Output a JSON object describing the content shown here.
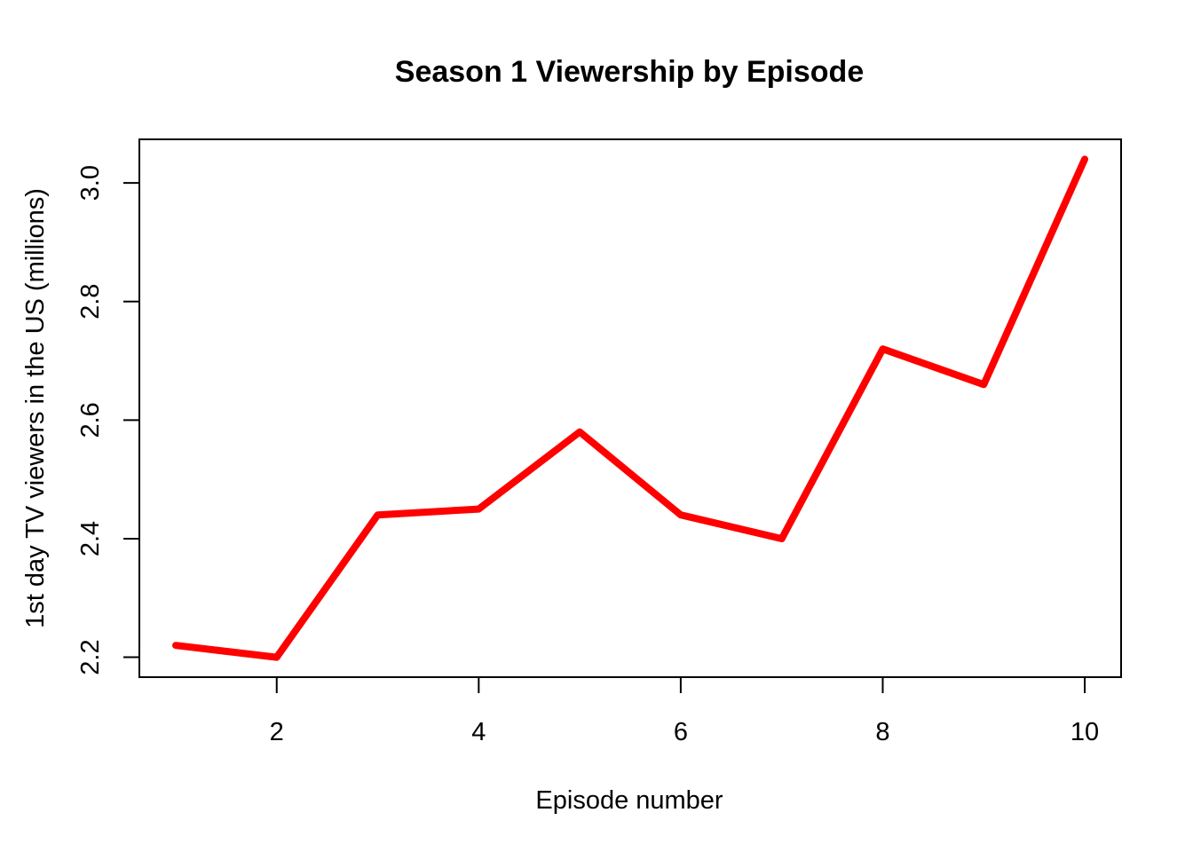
{
  "chart_data": {
    "type": "line",
    "title": "Season 1 Viewership by Episode",
    "xlabel": "Episode number",
    "ylabel": "1st day TV viewers in the US (millions)",
    "x": [
      1,
      2,
      3,
      4,
      5,
      6,
      7,
      8,
      9,
      10
    ],
    "series": [
      {
        "values": [
          2.22,
          2.2,
          2.44,
          2.45,
          2.58,
          2.44,
          2.4,
          2.72,
          2.66,
          3.04
        ],
        "color": "#ff0000"
      }
    ],
    "xlim": [
      0.64,
      10.36
    ],
    "ylim": [
      2.1664,
      3.0736
    ],
    "x_ticks": [
      2,
      4,
      6,
      8,
      10
    ],
    "x_tick_labels": [
      "2",
      "4",
      "6",
      "8",
      "10"
    ],
    "y_ticks": [
      2.2,
      2.4,
      2.6,
      2.8,
      3.0
    ],
    "y_tick_labels": [
      "2.2",
      "2.4",
      "2.6",
      "2.8",
      "3.0"
    ],
    "grid": false,
    "legend": "none"
  }
}
